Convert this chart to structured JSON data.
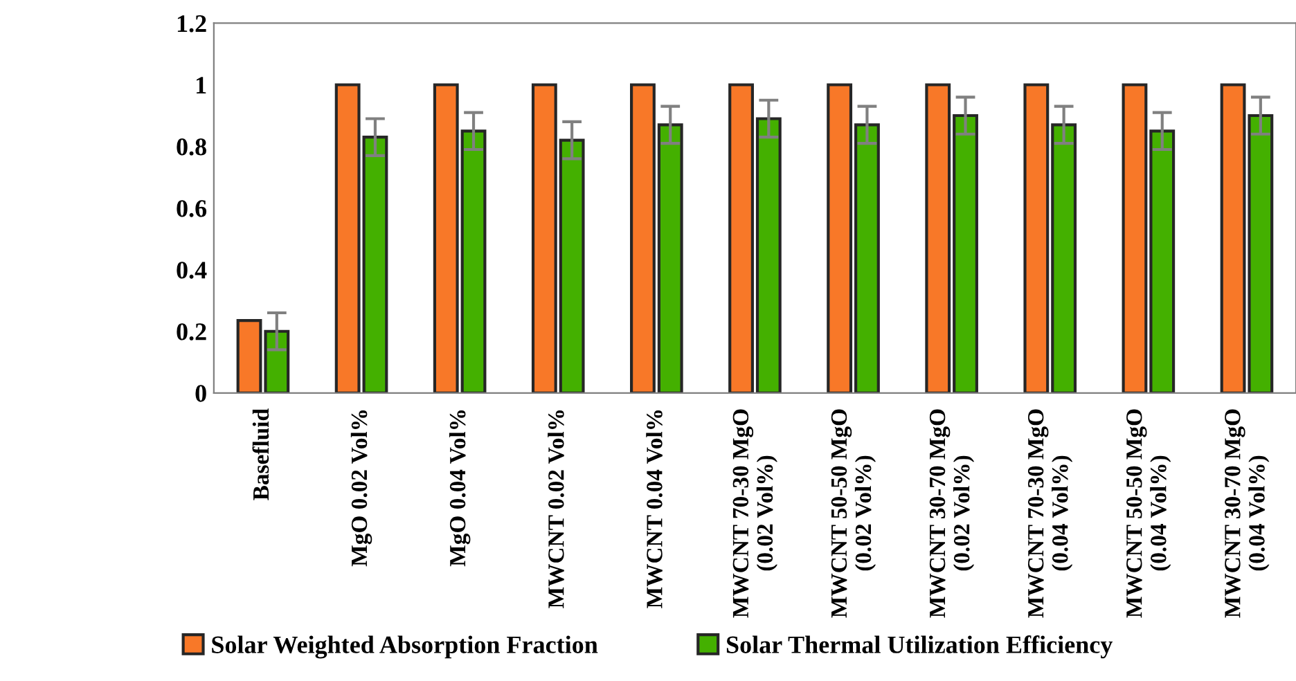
{
  "chart_data": {
    "type": "bar",
    "categories": [
      "Basefluid",
      "MgO 0.02 Vol%",
      "MgO 0.04 Vol%",
      "MWCNT 0.02 Vol%",
      "MWCNT 0.04 Vol%",
      "MWCNT 70-30 MgO\n(0.02 Vol%)",
      "MWCNT 50-50 MgO\n(0.02 Vol%)",
      "MWCNT 30-70 MgO\n(0.02 Vol%)",
      "MWCNT 70-30 MgO\n(0.04 Vol%)",
      "MWCNT 50-50 MgO\n(0.04 Vol%)",
      "MWCNT 30-70 MgO\n(0.04 Vol%)"
    ],
    "series": [
      {
        "name": "Solar Weighted Absorption Fraction",
        "color": "#f87828",
        "values": [
          0.235,
          1,
          1,
          1,
          1,
          1,
          1,
          1,
          1,
          1,
          1
        ]
      },
      {
        "name": "Solar Thermal Utilization Efficiency",
        "color": "#44b000",
        "values": [
          0.2,
          0.83,
          0.85,
          0.82,
          0.87,
          0.89,
          0.87,
          0.9,
          0.87,
          0.85,
          0.9
        ],
        "errors": [
          0.06,
          0.06,
          0.06,
          0.06,
          0.06,
          0.06,
          0.06,
          0.06,
          0.06,
          0.06,
          0.06
        ]
      }
    ],
    "ylim": [
      0,
      1.2
    ],
    "yticks": [
      0,
      0.2,
      0.4,
      0.6,
      0.8,
      1,
      1.2
    ],
    "grid": false,
    "legend": "bottom"
  }
}
